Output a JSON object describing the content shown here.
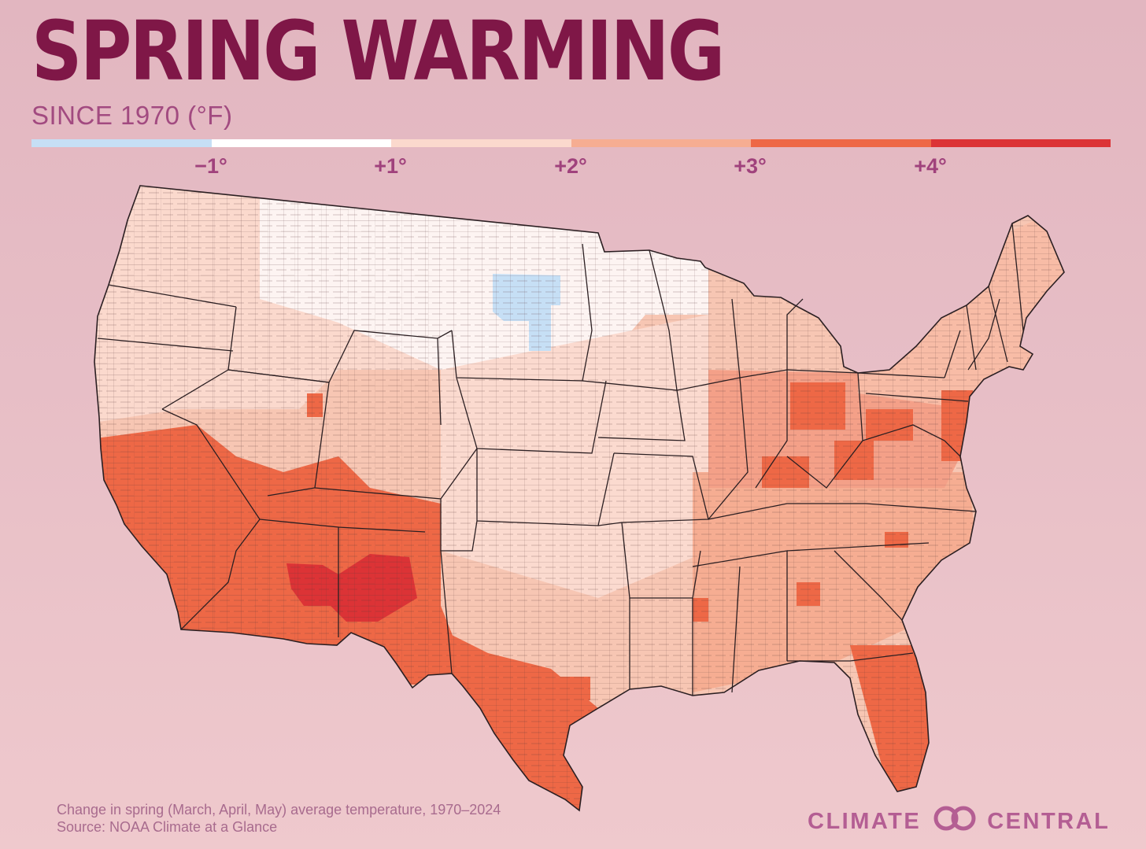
{
  "title": "SPRING WARMING",
  "subtitle": "SINCE 1970 (°F)",
  "legend": {
    "segments": [
      {
        "color": "#c6dff5"
      },
      {
        "color": "#ffffff"
      },
      {
        "color": "#fbd9cd"
      },
      {
        "color": "#f6ad92"
      },
      {
        "color": "#ee6846"
      },
      {
        "color": "#dc3336"
      }
    ],
    "labels": [
      "−1°",
      "+1°",
      "+2°",
      "+3°",
      "+4°"
    ]
  },
  "map": {
    "type": "county choropleth",
    "region": "Contiguous United States",
    "variable": "Change in spring average temperature since 1970 (°F)",
    "regions": [
      {
        "name": "Northern Plains (Dakotas, Montana, Minnesota)",
        "class": "-1° to +1° (some below -1°)",
        "color": "#ffffff"
      },
      {
        "name": "Pacific Northwest & Northern Rockies",
        "class": "+1° to +2°",
        "color": "#fbd9cd"
      },
      {
        "name": "Central Plains & Midwest",
        "class": "+1° to +2°",
        "color": "#fbd9cd"
      },
      {
        "name": "Southeast & Ohio Valley",
        "class": "+2° to +3°",
        "color": "#f6ad92"
      },
      {
        "name": "Northeast & Mid-Atlantic",
        "class": "+2° to +3°, patches +3° to +4°",
        "color": "#f6ad92"
      },
      {
        "name": "Desert Southwest (CA, NV, AZ, NM)",
        "class": "+3° to +4°",
        "color": "#ee6846"
      },
      {
        "name": "Southern New Mexico & West Texas",
        "class": "above +4°",
        "color": "#dc3336"
      },
      {
        "name": "South Texas & Florida",
        "class": "+3° to +4°",
        "color": "#ee6846"
      }
    ]
  },
  "footnote": {
    "line1": "Change in spring (March, April, May) average temperature, 1970–2024",
    "line2": "Source: NOAA Climate at a Glance"
  },
  "brand": {
    "left": "CLIMATE",
    "right": "CENTRAL",
    "logo_icon": "climate-central-logo-icon"
  }
}
